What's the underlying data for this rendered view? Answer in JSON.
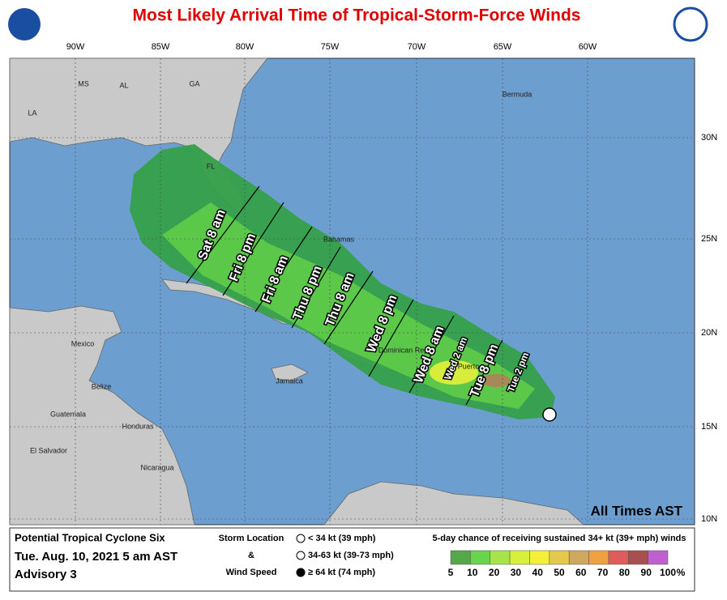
{
  "title": "Most Likely Arrival Time of Tropical-Storm-Force Winds",
  "grid": {
    "longitudes": [
      "90W",
      "85W",
      "80W",
      "75W",
      "70W",
      "65W",
      "60W"
    ],
    "latitudes": [
      "30N",
      "25N",
      "20N",
      "15N",
      "10N"
    ]
  },
  "places": [
    "MS",
    "AL",
    "GA",
    "LA",
    "FL",
    "Bahamas",
    "Bermuda",
    "Mexico",
    "Belize",
    "Guatemala",
    "Honduras",
    "El Salvador",
    "Nicaragua",
    "Jamaica",
    "Dominican Repu",
    "Puerto"
  ],
  "arrival_times": [
    "Sat 8 am",
    "Fri 8 pm",
    "Fri 8 am",
    "Thu 8 pm",
    "Thu 8 am",
    "Wed 8 pm",
    "Wed 8 am",
    "Wed 2 am",
    "Tue 8 pm",
    "Tue 2 pm"
  ],
  "note": "All Times AST",
  "legend": {
    "storm": "Potential Tropical Cyclone Six",
    "date": "Tue. Aug. 10, 2021  5 am AST",
    "advisory": "Advisory 3",
    "storm_location": "Storm Location",
    "amp": "&",
    "wind_speed": "Wind Speed",
    "symbols": [
      "< 34 kt (39 mph)",
      "34-63 kt (39-73 mph)",
      "≥ 64 kt (74 mph)"
    ],
    "scale_title": "5-day chance of receiving sustained 34+ kt (39+ mph) winds",
    "scale_labels": [
      5,
      10,
      20,
      30,
      40,
      50,
      60,
      70,
      80,
      90,
      100
    ],
    "unit": "%",
    "scale_colors": [
      "#55a84a",
      "#68d44c",
      "#a6e44a",
      "#d6f03c",
      "#f4f03a",
      "#e4c84c",
      "#cfa860",
      "#f0a040",
      "#e05c5c",
      "#a85050",
      "#c060d0"
    ]
  }
}
